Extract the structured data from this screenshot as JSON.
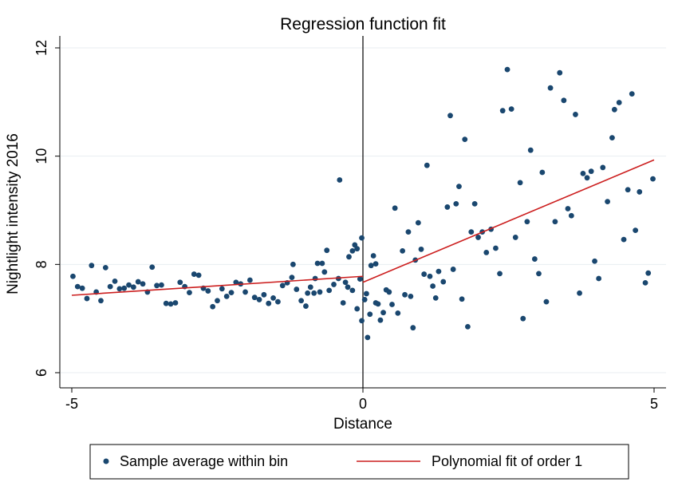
{
  "chart_data": {
    "type": "scatter",
    "title": "Regression function fit",
    "xlabel": "Distance",
    "ylabel": "Nightlight intensity 2016",
    "xlim": [
      -5,
      5
    ],
    "ylim": [
      6,
      12
    ],
    "xticks": [
      -5,
      0,
      5
    ],
    "yticks": [
      6,
      8,
      10,
      12
    ],
    "xtick_labels": [
      "-5",
      "0",
      "5"
    ],
    "ytick_labels": [
      "6",
      "8",
      "10",
      "12"
    ],
    "grid": true,
    "cutoff": 0,
    "legend_position": "bottom",
    "series": [
      {
        "name": "Sample average within bin",
        "kind": "scatter",
        "color": "#1a476f",
        "points": [
          [
            -4.98,
            7.78
          ],
          [
            -4.9,
            7.59
          ],
          [
            -4.82,
            7.56
          ],
          [
            -4.74,
            7.37
          ],
          [
            -4.66,
            7.98
          ],
          [
            -4.58,
            7.49
          ],
          [
            -4.5,
            7.33
          ],
          [
            -4.42,
            7.94
          ],
          [
            -4.34,
            7.59
          ],
          [
            -4.26,
            7.69
          ],
          [
            -4.18,
            7.55
          ],
          [
            -4.1,
            7.56
          ],
          [
            -4.02,
            7.62
          ],
          [
            -3.94,
            7.58
          ],
          [
            -3.86,
            7.68
          ],
          [
            -3.78,
            7.64
          ],
          [
            -3.7,
            7.49
          ],
          [
            -3.62,
            7.95
          ],
          [
            -3.54,
            7.61
          ],
          [
            -3.46,
            7.62
          ],
          [
            -3.38,
            7.28
          ],
          [
            -3.3,
            7.27
          ],
          [
            -3.22,
            7.29
          ],
          [
            -3.14,
            7.67
          ],
          [
            -3.06,
            7.59
          ],
          [
            -2.98,
            7.48
          ],
          [
            -2.9,
            7.82
          ],
          [
            -2.82,
            7.8
          ],
          [
            -2.74,
            7.56
          ],
          [
            -2.66,
            7.51
          ],
          [
            -2.58,
            7.22
          ],
          [
            -2.5,
            7.33
          ],
          [
            -2.42,
            7.55
          ],
          [
            -2.34,
            7.41
          ],
          [
            -2.26,
            7.48
          ],
          [
            -2.18,
            7.67
          ],
          [
            -2.1,
            7.64
          ],
          [
            -2.02,
            7.49
          ],
          [
            -1.94,
            7.71
          ],
          [
            -1.86,
            7.39
          ],
          [
            -1.78,
            7.35
          ],
          [
            -1.7,
            7.44
          ],
          [
            -1.62,
            7.28
          ],
          [
            -1.54,
            7.38
          ],
          [
            -1.46,
            7.31
          ],
          [
            -1.38,
            7.61
          ],
          [
            -1.3,
            7.66
          ],
          [
            -1.22,
            7.76
          ],
          [
            -1.14,
            7.54
          ],
          [
            -1.06,
            7.33
          ],
          [
            -0.98,
            7.23
          ],
          [
            -0.9,
            7.58
          ],
          [
            -0.82,
            7.74
          ],
          [
            -0.74,
            7.49
          ],
          [
            -0.66,
            7.86
          ],
          [
            -0.58,
            7.52
          ],
          [
            -0.5,
            7.63
          ],
          [
            -0.42,
            7.74
          ],
          [
            -0.34,
            7.29
          ],
          [
            -0.26,
            7.58
          ],
          [
            -0.18,
            7.52
          ],
          [
            -0.1,
            7.18
          ],
          [
            -0.02,
            6.96
          ],
          [
            0.06,
            7.46
          ],
          [
            0.14,
            7.98
          ],
          [
            0.22,
            8.01
          ],
          [
            -1.2,
            8.0
          ],
          [
            -0.95,
            7.47
          ],
          [
            -0.84,
            7.47
          ],
          [
            -0.78,
            8.02
          ],
          [
            -0.7,
            8.02
          ],
          [
            -0.62,
            8.26
          ],
          [
            -0.4,
            9.56
          ],
          [
            -0.3,
            7.67
          ],
          [
            -0.24,
            8.14
          ],
          [
            -0.18,
            8.25
          ],
          [
            -0.14,
            8.36
          ],
          [
            -0.1,
            8.29
          ],
          [
            -0.05,
            7.73
          ],
          [
            -0.02,
            8.49
          ]
        ]
      },
      {
        "name": "Sample average within bin (right)",
        "kind": "scatter",
        "color": "#1a476f",
        "points": [
          [
            0.03,
            7.35
          ],
          [
            0.08,
            6.65
          ],
          [
            0.12,
            7.08
          ],
          [
            0.18,
            8.16
          ],
          [
            0.22,
            7.29
          ],
          [
            0.26,
            7.27
          ],
          [
            0.3,
            6.97
          ],
          [
            0.35,
            7.11
          ],
          [
            0.4,
            7.53
          ],
          [
            0.45,
            7.49
          ],
          [
            0.5,
            7.26
          ],
          [
            0.55,
            9.04
          ],
          [
            0.6,
            7.1
          ],
          [
            0.68,
            8.25
          ],
          [
            0.72,
            7.44
          ],
          [
            0.78,
            8.6
          ],
          [
            0.82,
            7.41
          ],
          [
            0.86,
            6.83
          ],
          [
            0.9,
            8.08
          ],
          [
            0.95,
            8.77
          ],
          [
            1.0,
            8.28
          ],
          [
            1.05,
            7.82
          ],
          [
            1.1,
            9.83
          ],
          [
            1.15,
            7.78
          ],
          [
            1.2,
            7.6
          ],
          [
            1.25,
            7.38
          ],
          [
            1.3,
            7.87
          ],
          [
            1.38,
            7.68
          ],
          [
            1.45,
            9.06
          ],
          [
            1.5,
            10.75
          ],
          [
            1.55,
            7.91
          ],
          [
            1.6,
            9.12
          ],
          [
            1.65,
            9.44
          ],
          [
            1.7,
            7.36
          ],
          [
            1.75,
            10.31
          ],
          [
            1.8,
            6.85
          ],
          [
            1.86,
            8.6
          ],
          [
            1.92,
            9.12
          ],
          [
            1.98,
            8.5
          ],
          [
            2.05,
            8.6
          ],
          [
            2.12,
            8.22
          ],
          [
            2.2,
            8.65
          ],
          [
            2.28,
            8.3
          ],
          [
            2.35,
            7.83
          ],
          [
            2.4,
            10.84
          ],
          [
            2.48,
            11.6
          ],
          [
            2.55,
            10.87
          ],
          [
            2.62,
            8.5
          ],
          [
            2.7,
            9.51
          ],
          [
            2.75,
            7.0
          ],
          [
            2.82,
            8.79
          ],
          [
            2.88,
            10.11
          ],
          [
            2.95,
            8.1
          ],
          [
            3.02,
            7.83
          ],
          [
            3.08,
            9.7
          ],
          [
            3.15,
            7.31
          ],
          [
            3.22,
            11.26
          ],
          [
            3.3,
            8.79
          ],
          [
            3.38,
            11.54
          ],
          [
            3.45,
            11.03
          ],
          [
            3.52,
            9.03
          ],
          [
            3.58,
            8.9
          ],
          [
            3.65,
            10.77
          ],
          [
            3.72,
            7.47
          ],
          [
            3.78,
            9.68
          ],
          [
            3.85,
            9.6
          ],
          [
            3.92,
            9.72
          ],
          [
            3.98,
            8.06
          ],
          [
            4.05,
            7.74
          ],
          [
            4.12,
            9.79
          ],
          [
            4.2,
            9.16
          ],
          [
            4.28,
            10.34
          ],
          [
            4.32,
            10.86
          ],
          [
            4.4,
            10.99
          ],
          [
            4.48,
            8.46
          ],
          [
            4.55,
            9.38
          ],
          [
            4.62,
            11.15
          ],
          [
            4.68,
            8.63
          ],
          [
            4.75,
            9.34
          ],
          [
            4.85,
            7.66
          ],
          [
            4.9,
            7.84
          ],
          [
            4.98,
            9.58
          ]
        ]
      },
      {
        "name": "Polynomial fit of order 1",
        "kind": "line",
        "color": "#cc1f1f",
        "segments": [
          [
            [
              -5.0,
              7.43
            ],
            [
              0.0,
              7.78
            ]
          ],
          [
            [
              0.0,
              7.67
            ],
            [
              5.0,
              9.93
            ]
          ]
        ]
      }
    ],
    "legend": [
      {
        "label": "Sample average within bin",
        "marker": "dot",
        "color": "#1a476f"
      },
      {
        "label": "Polynomial fit of order 1",
        "marker": "line",
        "color": "#cc1f1f"
      }
    ]
  }
}
